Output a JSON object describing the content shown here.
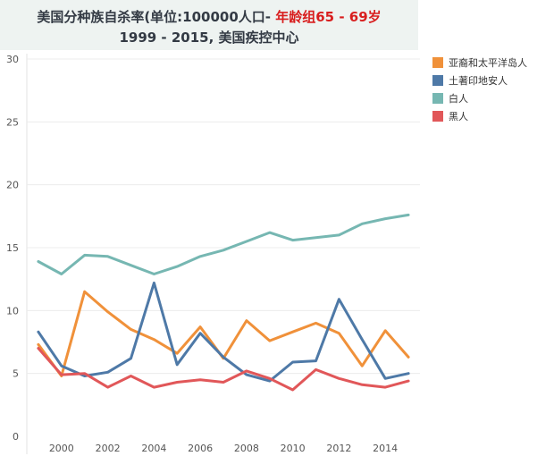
{
  "title": {
    "line1_prefix": "美国分种族自杀率(单位:100000人口-",
    "line1_red": "年龄组65 - 69岁",
    "line2": "1999 - 2015, 美国疾控中心"
  },
  "colors": {
    "background": "#ffffff",
    "title_bg": "#eef3f1",
    "grid": "#ececec",
    "axis_text": "#555555"
  },
  "chart_data": {
    "type": "line",
    "title": "美国分种族自杀率(单位:100000人口- 年龄组65 - 69岁 1999 - 2015, 美国疾控中心",
    "xlabel": "",
    "ylabel": "",
    "x": [
      1999,
      2000,
      2001,
      2002,
      2003,
      2004,
      2005,
      2006,
      2007,
      2008,
      2009,
      2010,
      2011,
      2012,
      2013,
      2014,
      2015
    ],
    "xticks": [
      2000,
      2002,
      2004,
      2006,
      2008,
      2010,
      2012,
      2014
    ],
    "xtick_labels": [
      "2000",
      "2002",
      "2004",
      "2006",
      "2008",
      "2010",
      "2012",
      "2014"
    ],
    "xlim": [
      1998.5,
      2015.5
    ],
    "ylim": [
      0,
      30
    ],
    "yticks": [
      0,
      5,
      10,
      15,
      20,
      25,
      30
    ],
    "ytick_labels": [
      "0",
      "5",
      "10",
      "15",
      "20",
      "25",
      "30"
    ],
    "grid": true,
    "legend_position": "right",
    "series": [
      {
        "name": "亚裔和太平洋岛人",
        "color": "#f0913a",
        "values": [
          7.3,
          4.8,
          11.5,
          9.9,
          8.5,
          7.7,
          6.6,
          8.7,
          6.2,
          9.2,
          7.6,
          8.3,
          9.0,
          8.2,
          5.6,
          8.4,
          6.3
        ]
      },
      {
        "name": "土著印地安人",
        "color": "#4e79a7",
        "values": [
          8.3,
          5.6,
          4.8,
          5.1,
          6.2,
          12.2,
          5.7,
          8.2,
          6.3,
          4.9,
          4.4,
          5.9,
          6.0,
          10.9,
          7.7,
          4.6,
          5.0
        ]
      },
      {
        "name": "白人",
        "color": "#76b7b2",
        "values": [
          13.9,
          12.9,
          14.4,
          14.3,
          13.6,
          12.9,
          13.5,
          14.3,
          14.8,
          15.5,
          16.2,
          15.6,
          15.8,
          16.0,
          16.9,
          17.3,
          17.6
        ]
      },
      {
        "name": "黑人",
        "color": "#e15759",
        "values": [
          7.0,
          4.9,
          5.0,
          3.9,
          4.8,
          3.9,
          4.3,
          4.5,
          4.3,
          5.2,
          4.6,
          3.7,
          5.3,
          4.6,
          4.1,
          3.9,
          4.4
        ]
      }
    ]
  }
}
